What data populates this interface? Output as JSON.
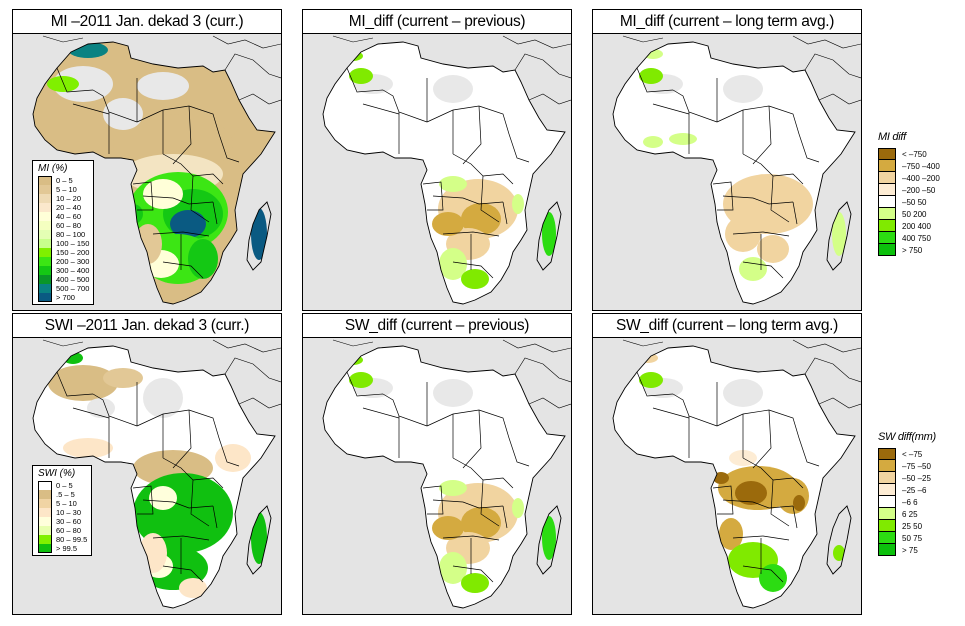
{
  "figure": {
    "panels": [
      {
        "id": "mi-current",
        "title": "MI –2011 Jan. dekad 3 (curr.)",
        "variable": "MI",
        "period": "2011 Jan. dekad 3",
        "kind": "current",
        "palette": "mi"
      },
      {
        "id": "mi-diff-prev",
        "title": "MI_diff (current – previous)",
        "variable": "MI_diff",
        "kind": "diff-previous",
        "palette": "diff"
      },
      {
        "id": "mi-diff-lta",
        "title": "MI_diff (current – long term avg.)",
        "variable": "MI_diff",
        "kind": "diff-lta",
        "palette": "diff"
      },
      {
        "id": "swi-current",
        "title": "SWI –2011 Jan. dekad 3 (curr.)",
        "variable": "SWI",
        "period": "2011 Jan. dekad 3",
        "kind": "current",
        "palette": "swi"
      },
      {
        "id": "sw-diff-prev",
        "title": "SW_diff (current – previous)",
        "variable": "SW_diff",
        "kind": "diff-previous",
        "palette": "diff"
      },
      {
        "id": "sw-diff-lta",
        "title": "SW_diff (current – long term avg.)",
        "variable": "SW_diff",
        "kind": "diff-lta",
        "palette": "diff"
      }
    ],
    "colors": {
      "ocean": "#e4e4e4",
      "no_data": "#dcdcdc",
      "border": "#000000"
    }
  },
  "legends": {
    "mi": {
      "title": "MI (%)",
      "items": [
        {
          "label": "0 – 5",
          "color": "#d9bd85"
        },
        {
          "label": "5 – 10",
          "color": "#e2c896"
        },
        {
          "label": "10 – 20",
          "color": "#efdbb5"
        },
        {
          "label": "20 – 40",
          "color": "#fbe8cc"
        },
        {
          "label": "40 – 60",
          "color": "#ffffd8"
        },
        {
          "label": "60 – 80",
          "color": "#f4ffc0"
        },
        {
          "label": "80 – 100",
          "color": "#e4ffb4"
        },
        {
          "label": "100 – 150",
          "color": "#c8ff8c"
        },
        {
          "label": "150 – 200",
          "color": "#80f000"
        },
        {
          "label": "200 – 300",
          "color": "#3ce614"
        },
        {
          "label": "300 – 400",
          "color": "#14c814"
        },
        {
          "label": "400 – 500",
          "color": "#0a9628"
        },
        {
          "label": "500 – 700",
          "color": "#0a8282"
        },
        {
          "label": "> 700",
          "color": "#0a5a82"
        }
      ]
    },
    "swi": {
      "title": "SWI (%)",
      "items": [
        {
          "label": "0 – 5",
          "color": "#ffffff"
        },
        {
          "label": ".5 – 5",
          "color": "#d9bd85"
        },
        {
          "label": "5 – 10",
          "color": "#f0d4a4"
        },
        {
          "label": "10 – 30",
          "color": "#fde6c8"
        },
        {
          "label": "30 – 60",
          "color": "#ffffdc"
        },
        {
          "label": "60 – 80",
          "color": "#e8ffb0"
        },
        {
          "label": "80 – 99.5",
          "color": "#80f000"
        },
        {
          "label": "> 99.5",
          "color": "#10c010"
        }
      ]
    },
    "mi_diff": {
      "title": "MI diff",
      "items": [
        {
          "label": "< –750",
          "color": "#9b6a0c"
        },
        {
          "label": "–750 –400",
          "color": "#d4aa40"
        },
        {
          "label": "–400 –200",
          "color": "#f1d4a0"
        },
        {
          "label": "–200  –50",
          "color": "#fdecd4"
        },
        {
          "label": "–50  50",
          "color": "#ffffff"
        },
        {
          "label": " 50  200",
          "color": "#d4ff88"
        },
        {
          "label": "200  400",
          "color": "#80ea00"
        },
        {
          "label": "400  750",
          "color": "#2cdc12"
        },
        {
          "label": "> 750",
          "color": "#0cc00c"
        }
      ]
    },
    "sw_diff": {
      "title": "SW diff(mm)",
      "items": [
        {
          "label": "< –75",
          "color": "#9b6a0c"
        },
        {
          "label": "–75 –50",
          "color": "#d4aa40"
        },
        {
          "label": "–50 –25",
          "color": "#f1d4a0"
        },
        {
          "label": "–25  –6",
          "color": "#fdecd4"
        },
        {
          "label": "–6  6",
          "color": "#ffffff"
        },
        {
          "label": " 6  25",
          "color": "#d4ff88"
        },
        {
          "label": "25  50",
          "color": "#80ea00"
        },
        {
          "label": "50  75",
          "color": "#2cdc12"
        },
        {
          "label": "> 75",
          "color": "#0cc00c"
        }
      ]
    }
  }
}
